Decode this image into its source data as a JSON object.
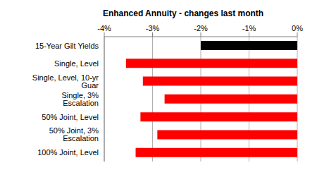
{
  "chart_data": {
    "type": "bar",
    "title": "Enhanced Annuity - changes last month",
    "orientation": "horizontal",
    "categories": [
      "15-Year Gilt Yields",
      "Single, Level",
      "Single, Level, 10-yr Guar",
      "Single, 3% Escalation",
      "50% Joint, Level",
      "50% Joint, 3% Escalation",
      "100% Joint, Level"
    ],
    "values": [
      -2.0,
      -3.55,
      -3.2,
      -2.75,
      -3.25,
      -2.9,
      -3.35
    ],
    "colors": [
      "#000000",
      "#ff0000",
      "#ff0000",
      "#ff0000",
      "#ff0000",
      "#ff0000",
      "#ff0000"
    ],
    "xlim": [
      -4,
      0
    ],
    "xticks": [
      {
        "value": -4,
        "label": "-4%"
      },
      {
        "value": -3,
        "label": "-3%"
      },
      {
        "value": -2,
        "label": "-2%"
      },
      {
        "value": -1,
        "label": "-1%"
      },
      {
        "value": 0,
        "label": "0%"
      }
    ],
    "grid": true
  }
}
